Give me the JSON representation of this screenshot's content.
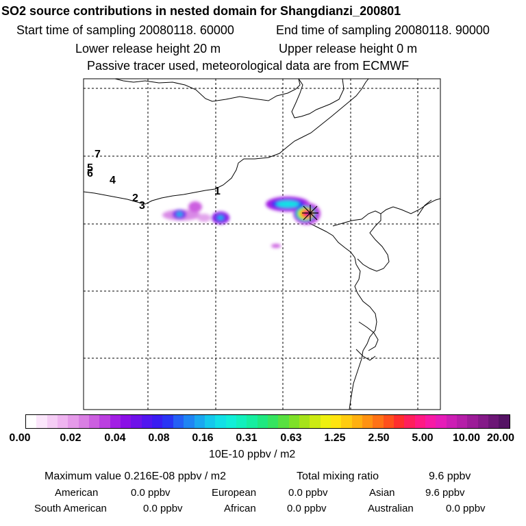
{
  "header": {
    "title": "SO2 source contributions in nested domain for Shangdianzi_200801",
    "start_time": "Start time of sampling 20080118. 60000",
    "end_time": "End time of sampling 20080118. 90000",
    "lower_release": "Lower release height   20 m",
    "upper_release": "Upper release height    0 m",
    "tracer_note": "Passive tracer used, meteorological data are from ECMWF"
  },
  "map": {
    "station_labels": [
      "1",
      "2",
      "3",
      "4",
      "5",
      "6",
      "7"
    ],
    "receptor_marker": "star-cross"
  },
  "colorbar": {
    "tick_labels": [
      "0.00",
      "0.02",
      "0.04",
      "0.08",
      "0.16",
      "0.31",
      "0.63",
      "1.25",
      "2.50",
      "5.00",
      "10.00",
      "20.00"
    ],
    "colors": [
      "#ffffff",
      "#fbe6fb",
      "#f5cdf5",
      "#efb4f0",
      "#e59ae9",
      "#d97fe3",
      "#cc5fe0",
      "#bb3fe0",
      "#a21fe4",
      "#8a10e6",
      "#6e12ea",
      "#5216f0",
      "#3a1df2",
      "#2a35f4",
      "#2560f5",
      "#1f85f3",
      "#1aa8f0",
      "#15c8ec",
      "#12e0e6",
      "#11eed8",
      "#12f0bd",
      "#16eea0",
      "#1fe880",
      "#35e460",
      "#58e040",
      "#7ee028",
      "#a6e31a",
      "#ccea12",
      "#eef00f",
      "#ffe40f",
      "#ffcc10",
      "#ffb010",
      "#ff9212",
      "#ff7216",
      "#ff501c",
      "#ff2e2e",
      "#ff1f5c",
      "#ff1a84",
      "#f71aa5",
      "#e61cb8",
      "#cc1eb4",
      "#b51ea8",
      "#9c1c98",
      "#841a88",
      "#6c1676",
      "#541264"
    ],
    "units": "10E-10 ppbv / m2"
  },
  "summary": {
    "max_value": "Maximum value  0.216E-08 ppbv / m2",
    "total_mixing": "Total mixing ratio",
    "total_mixing_value": "9.6 ppbv",
    "regions": [
      {
        "name": "American",
        "value": "0.0 ppbv"
      },
      {
        "name": "European",
        "value": "0.0 ppbv"
      },
      {
        "name": "Asian",
        "value": "9.6 ppbv"
      },
      {
        "name": "South American",
        "value": "0.0 ppbv"
      },
      {
        "name": "African",
        "value": "0.0 ppbv"
      },
      {
        "name": "Australian",
        "value": "0.0 ppbv"
      }
    ]
  }
}
